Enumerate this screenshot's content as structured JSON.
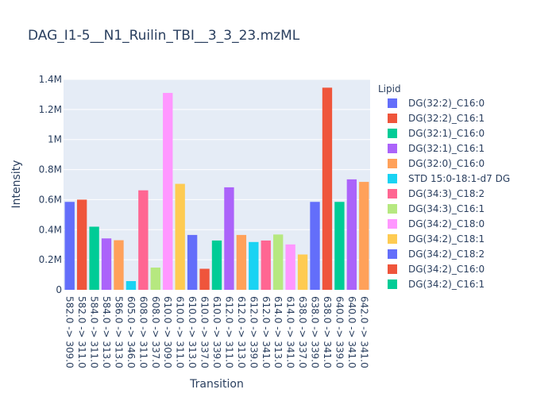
{
  "chart_data": {
    "type": "bar",
    "title": "DAG_I1-5__N1_Ruilin_TBI__3_3_23.mzML",
    "xlabel": "Transition",
    "ylabel": "Intensity",
    "ylim": [
      0,
      1400000
    ],
    "yticks": [
      0,
      200000,
      400000,
      600000,
      800000,
      1000000,
      1200000,
      1400000
    ],
    "ytick_labels": [
      "0",
      "0.2M",
      "0.4M",
      "0.6M",
      "0.8M",
      "1M",
      "1.2M",
      "1.4M"
    ],
    "grid": true,
    "legend_title": "Lipid",
    "legend_position": "right",
    "categories": [
      "582.0 -> 309.0",
      "582.0 -> 311.0",
      "584.0 -> 311.0",
      "584.0 -> 313.0",
      "586.0 -> 313.0",
      "605.0 -> 346.0",
      "608.0 -> 311.0",
      "608.0 -> 337.0",
      "610.0 -> 309.0",
      "610.0 -> 311.0",
      "610.0 -> 313.0",
      "610.0 -> 337.0",
      "610.0 -> 339.0",
      "612.0 -> 311.0",
      "612.0 -> 313.0",
      "612.0 -> 339.0",
      "612.0 -> 341.0",
      "614.0 -> 313.0",
      "614.0 -> 341.0",
      "638.0 -> 337.0",
      "638.0 -> 339.0",
      "638.0 -> 341.0",
      "640.0 -> 339.0",
      "640.0 -> 341.0",
      "642.0 -> 341.0"
    ],
    "series": [
      {
        "name": "DG(32:2)_C16:0",
        "color": "#636efa",
        "category_index": 0,
        "value": 585000
      },
      {
        "name": "DG(32:2)_C16:1",
        "color": "#EF553B",
        "category_index": 1,
        "value": 600000
      },
      {
        "name": "DG(32:1)_C16:0",
        "color": "#00cc96",
        "category_index": 2,
        "value": 420000
      },
      {
        "name": "DG(32:1)_C16:1",
        "color": "#ab63fa",
        "category_index": 3,
        "value": 342000
      },
      {
        "name": "DG(32:0)_C16:0",
        "color": "#FFA15A",
        "category_index": 4,
        "value": 330000
      },
      {
        "name": "STD 15:0-18:1-d7 DG",
        "color": "#19d3f3",
        "category_index": 5,
        "value": 58000
      },
      {
        "name": "DG(34:3)_C18:2",
        "color": "#FF6692",
        "category_index": 6,
        "value": 662000
      },
      {
        "name": "DG(34:3)_C16:1",
        "color": "#B6E880",
        "category_index": 7,
        "value": 148000
      },
      {
        "name": "DG(34:2)_C18:0",
        "color": "#FF97FF",
        "category_index": 8,
        "value": 1310000
      },
      {
        "name": "DG(34:2)_C18:1",
        "color": "#FECB52",
        "category_index": 9,
        "value": 705000
      },
      {
        "name": "DG(34:2)_C18:2",
        "color": "#636efa",
        "category_index": 10,
        "value": 365000
      },
      {
        "name": "DG(34:2)_C16:0",
        "color": "#EF553B",
        "category_index": 11,
        "value": 140000
      },
      {
        "name": "DG(34:2)_C16:1",
        "color": "#00cc96",
        "category_index": 12,
        "value": 328000
      },
      {
        "name": "",
        "color": "#ab63fa",
        "category_index": 13,
        "value": 682000
      },
      {
        "name": "",
        "color": "#FFA15A",
        "category_index": 14,
        "value": 365000
      },
      {
        "name": "",
        "color": "#19d3f3",
        "category_index": 15,
        "value": 318000
      },
      {
        "name": "",
        "color": "#FF6692",
        "category_index": 16,
        "value": 328000
      },
      {
        "name": "",
        "color": "#B6E880",
        "category_index": 17,
        "value": 368000
      },
      {
        "name": "",
        "color": "#FF97FF",
        "category_index": 18,
        "value": 302000
      },
      {
        "name": "",
        "color": "#FECB52",
        "category_index": 19,
        "value": 235000
      },
      {
        "name": "",
        "color": "#636efa",
        "category_index": 20,
        "value": 585000
      },
      {
        "name": "",
        "color": "#EF553B",
        "category_index": 21,
        "value": 1345000
      },
      {
        "name": "",
        "color": "#00cc96",
        "category_index": 22,
        "value": 585000
      },
      {
        "name": "",
        "color": "#ab63fa",
        "category_index": 23,
        "value": 735000
      },
      {
        "name": "",
        "color": "#FFA15A",
        "category_index": 24,
        "value": 718000
      }
    ]
  },
  "colors": {
    "plot_background": "#e5ecf6",
    "grid": "#ffffff",
    "text": "#2a3f5f"
  }
}
